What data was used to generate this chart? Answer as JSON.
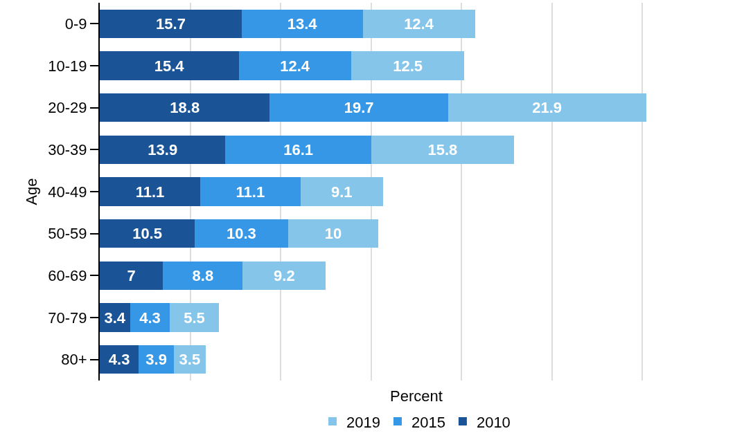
{
  "chart_data": {
    "type": "bar",
    "orientation": "horizontal",
    "stacked": true,
    "xlabel": "Percent",
    "ylabel": "Age",
    "categories": [
      "0-9",
      "10-19",
      "20-29",
      "30-39",
      "40-49",
      "50-59",
      "60-69",
      "70-79",
      "80+"
    ],
    "series": [
      {
        "name": "2010",
        "color": "#1a5496",
        "values": [
          15.7,
          15.4,
          18.8,
          13.9,
          11.1,
          10.5,
          7,
          3.4,
          4.3
        ]
      },
      {
        "name": "2015",
        "color": "#3597e6",
        "values": [
          13.4,
          12.4,
          19.7,
          16.1,
          11.1,
          10.3,
          8.8,
          4.3,
          3.9
        ]
      },
      {
        "name": "2019",
        "color": "#85c5ea",
        "values": [
          12.4,
          12.5,
          21.9,
          15.8,
          9.1,
          10,
          9.2,
          5.5,
          3.5
        ]
      }
    ],
    "xlim": [
      0,
      70
    ],
    "xticks": [
      {
        "value": 0,
        "label": null
      },
      {
        "value": 10,
        "label": null
      },
      {
        "value": 20,
        "label": null
      },
      {
        "value": 30,
        "label": null
      },
      {
        "value": 40,
        "label": null
      },
      {
        "value": 50,
        "label": null
      },
      {
        "value": 60,
        "label": null
      },
      {
        "value": 70,
        "label": null
      }
    ],
    "tick_labels": "y",
    "grid": "x",
    "legend": "bottom",
    "data_labels": true
  }
}
